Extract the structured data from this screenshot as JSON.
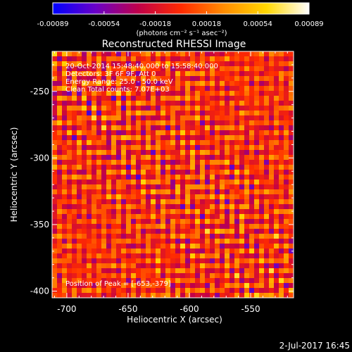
{
  "colorbar": {
    "tick_labels": [
      "-0.00089",
      "-0.00054",
      "-0.00018",
      "0.00018",
      "0.00054",
      "0.00089"
    ],
    "unit_label": "(photons cm⁻² s⁻¹ asec⁻²)",
    "range": [
      -0.00089,
      0.00089
    ],
    "colormap": [
      "#0000ff",
      "#6a00c8",
      "#c0004a",
      "#ff2a00",
      "#ff8c00",
      "#ffd700",
      "#ffffff"
    ]
  },
  "chart_data": {
    "type": "heatmap",
    "title": "Reconstructed RHESSI Image",
    "xlabel": "Heliocentric X (arcsec)",
    "ylabel": "Heliocentric Y (arcsec)",
    "xlim": [
      -712,
      -515
    ],
    "ylim": [
      -405,
      -220
    ],
    "x_ticks": [
      -700,
      -650,
      -600,
      -550
    ],
    "y_ticks": [
      -250,
      -300,
      -350,
      -400
    ],
    "x_tick_labels": [
      "-700",
      "-650",
      "-600",
      "-550"
    ],
    "y_tick_labels": [
      "-250",
      "-300",
      "-350",
      "-400"
    ],
    "annotations": [
      "20-Oct-2014 15:48:40.000 to 15:58:40.000",
      "Detectors: 3F 6F 9F, Att 0",
      "Energy Range: 25.0 - 50.0 keV",
      "Clean    Total counts: 7.07E+03"
    ],
    "peak_label": "Position of Peak = [-653,-379]",
    "peak_position": [
      -653,
      -379
    ]
  },
  "footer": {
    "date": "2-Jul-2017 16:45"
  }
}
